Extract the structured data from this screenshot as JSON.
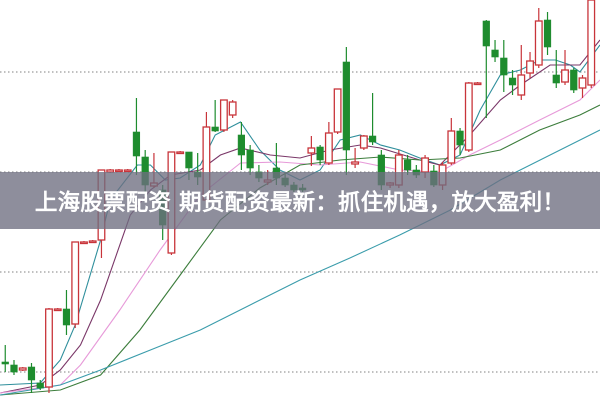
{
  "banner": {
    "title": "上海股票配资 期货配资最新：抓住机遇，放大盈利！"
  },
  "colors": {
    "up": "#c8343a",
    "down": "#1e8c2e",
    "grid": "#9a9a9a",
    "banner_bg": "#6e6e80"
  },
  "chart_data": {
    "type": "candlestick",
    "title": "",
    "xlabel": "",
    "ylabel": "",
    "xlim": [
      -0.6,
      68
    ],
    "ylim": [
      0,
      400
    ],
    "grid": {
      "horizontal": true,
      "style": "dotted",
      "levels": [
        28,
        128,
        228,
        328
      ]
    },
    "legend": "none",
    "candles_ohlc": [
      [
        38,
        55,
        28,
        36
      ],
      [
        35,
        40,
        25,
        28
      ],
      [
        30,
        33,
        29,
        32
      ],
      [
        33,
        37,
        7,
        20
      ],
      [
        17,
        20,
        10,
        12
      ],
      [
        13,
        92,
        7,
        91
      ],
      [
        91,
        92,
        90,
        91
      ],
      [
        91,
        110,
        65,
        75
      ],
      [
        76,
        158,
        72,
        158
      ],
      [
        158,
        159,
        157,
        158
      ],
      [
        158,
        160,
        157,
        159
      ],
      [
        160,
        230,
        142,
        230
      ],
      [
        228,
        231,
        227,
        230
      ],
      [
        229,
        231,
        228,
        230
      ],
      [
        229,
        231,
        228,
        230
      ],
      [
        268,
        302,
        225,
        244
      ],
      [
        243,
        250,
        200,
        215
      ],
      [
        214,
        247,
        212,
        217
      ],
      [
        210,
        215,
        160,
        175
      ],
      [
        147,
        248,
        145,
        248
      ],
      [
        248,
        249,
        247,
        248
      ],
      [
        248,
        248,
        220,
        232
      ],
      [
        228,
        247,
        215,
        223
      ],
      [
        200,
        288,
        195,
        273
      ],
      [
        273,
        300,
        268,
        269
      ],
      [
        270,
        300,
        268,
        300
      ],
      [
        285,
        300,
        282,
        298
      ],
      [
        265,
        278,
        230,
        245
      ],
      [
        250,
        255,
        225,
        232
      ],
      [
        228,
        235,
        218,
        222
      ],
      [
        218,
        230,
        215,
        220
      ],
      [
        232,
        257,
        215,
        222
      ],
      [
        222,
        226,
        213,
        215
      ],
      [
        215,
        218,
        208,
        210
      ],
      [
        212,
        216,
        208,
        210
      ],
      [
        247,
        264,
        234,
        252
      ],
      [
        253,
        255,
        235,
        240
      ],
      [
        237,
        278,
        235,
        267
      ],
      [
        268,
        311,
        266,
        311
      ],
      [
        338,
        353,
        225,
        250
      ],
      [
        236,
        252,
        232,
        238
      ],
      [
        252,
        265,
        250,
        264
      ],
      [
        264,
        307,
        255,
        258
      ],
      [
        245,
        250,
        210,
        215
      ],
      [
        215,
        218,
        212,
        217
      ],
      [
        215,
        250,
        212,
        245
      ],
      [
        240,
        245,
        225,
        230
      ],
      [
        230,
        235,
        222,
        225
      ],
      [
        228,
        245,
        222,
        242
      ],
      [
        229,
        235,
        213,
        215
      ],
      [
        215,
        238,
        210,
        235
      ],
      [
        237,
        282,
        235,
        269
      ],
      [
        269,
        272,
        245,
        255
      ],
      [
        250,
        318,
        248,
        317
      ],
      [
        317,
        318,
        316,
        317
      ],
      [
        379,
        380,
        282,
        354
      ],
      [
        350,
        360,
        338,
        343
      ],
      [
        342,
        360,
        308,
        325
      ],
      [
        322,
        330,
        305,
        315
      ],
      [
        305,
        355,
        300,
        325
      ],
      [
        327,
        348,
        322,
        339
      ],
      [
        335,
        392,
        332,
        379
      ],
      [
        380,
        388,
        345,
        353
      ],
      [
        325,
        350,
        312,
        317
      ],
      [
        318,
        350,
        315,
        330
      ],
      [
        330,
        332,
        307,
        310
      ],
      [
        312,
        325,
        302,
        322
      ],
      [
        315,
        400,
        312,
        400
      ]
    ],
    "moving_averages": [
      {
        "color": "#2f8f9c",
        "points": [
          [
            -0.6,
            15
          ],
          [
            4,
            17
          ],
          [
            6.3,
            40
          ],
          [
            8,
            75
          ],
          [
            10.9,
            160
          ],
          [
            12,
            200
          ],
          [
            15.1,
            235
          ],
          [
            16.6,
            235
          ],
          [
            18.3,
            220
          ],
          [
            20,
            222
          ],
          [
            22.3,
            235
          ],
          [
            24,
            265
          ],
          [
            26.9,
            278
          ],
          [
            29.1,
            250
          ],
          [
            31.4,
            230
          ],
          [
            33.7,
            220
          ],
          [
            36,
            230
          ],
          [
            38.3,
            260
          ],
          [
            40.6,
            265
          ],
          [
            42.9,
            255
          ],
          [
            45.1,
            250
          ],
          [
            47.4,
            242
          ],
          [
            49.7,
            235
          ],
          [
            52,
            245
          ],
          [
            54.3,
            290
          ],
          [
            56.6,
            325
          ],
          [
            58.9,
            330
          ],
          [
            61.1,
            340
          ],
          [
            62.9,
            340
          ],
          [
            64.6,
            335
          ],
          [
            65.7,
            328
          ],
          [
            68,
            355
          ]
        ]
      },
      {
        "color": "#7a3768",
        "points": [
          [
            -0.6,
            7
          ],
          [
            4,
            15
          ],
          [
            6.3,
            30
          ],
          [
            8.6,
            55
          ],
          [
            10.9,
            100
          ],
          [
            14.3,
            185
          ],
          [
            16.6,
            210
          ],
          [
            18.9,
            225
          ],
          [
            22.3,
            230
          ],
          [
            24.6,
            245
          ],
          [
            26.9,
            252
          ],
          [
            30.3,
            245
          ],
          [
            33.7,
            242
          ],
          [
            37.1,
            250
          ],
          [
            40.6,
            255
          ],
          [
            42.9,
            252
          ],
          [
            47.4,
            240
          ],
          [
            49.7,
            235
          ],
          [
            53.1,
            265
          ],
          [
            56.6,
            300
          ],
          [
            58.9,
            315
          ],
          [
            62.3,
            335
          ],
          [
            65.7,
            335
          ],
          [
            68,
            360
          ]
        ]
      },
      {
        "color": "#e79ad9",
        "points": [
          [
            -0.6,
            7
          ],
          [
            6.3,
            15
          ],
          [
            8.6,
            35
          ],
          [
            13.1,
            90
          ],
          [
            17.7,
            150
          ],
          [
            22.3,
            205
          ],
          [
            26.9,
            237
          ],
          [
            31.4,
            238
          ],
          [
            36,
            235
          ],
          [
            40.6,
            238
          ],
          [
            45.1,
            230
          ],
          [
            49.7,
            228
          ],
          [
            53.1,
            245
          ],
          [
            56.6,
            260
          ],
          [
            61.1,
            280
          ],
          [
            65.7,
            300
          ],
          [
            68,
            320
          ]
        ]
      },
      {
        "color": "#3c7d3c",
        "points": [
          [
            -0.6,
            5
          ],
          [
            6.3,
            10
          ],
          [
            10.9,
            25
          ],
          [
            15.4,
            70
          ],
          [
            20,
            125
          ],
          [
            24.6,
            180
          ],
          [
            29.1,
            212
          ],
          [
            33.7,
            235
          ],
          [
            38.3,
            240
          ],
          [
            42.9,
            243
          ],
          [
            47.4,
            240
          ],
          [
            52,
            242
          ],
          [
            56.6,
            250
          ],
          [
            61.1,
            270
          ],
          [
            65.7,
            285
          ],
          [
            68,
            295
          ]
        ]
      },
      {
        "color": "#3a9cab",
        "points": [
          [
            -0.6,
            5
          ],
          [
            6.3,
            15
          ],
          [
            10.9,
            30
          ],
          [
            16.6,
            50
          ],
          [
            22.3,
            70
          ],
          [
            28,
            95
          ],
          [
            33.7,
            120
          ],
          [
            39.4,
            142
          ],
          [
            45.1,
            165
          ],
          [
            50.9,
            190
          ],
          [
            56.6,
            220
          ],
          [
            62.3,
            245
          ],
          [
            68,
            270
          ]
        ]
      }
    ]
  }
}
